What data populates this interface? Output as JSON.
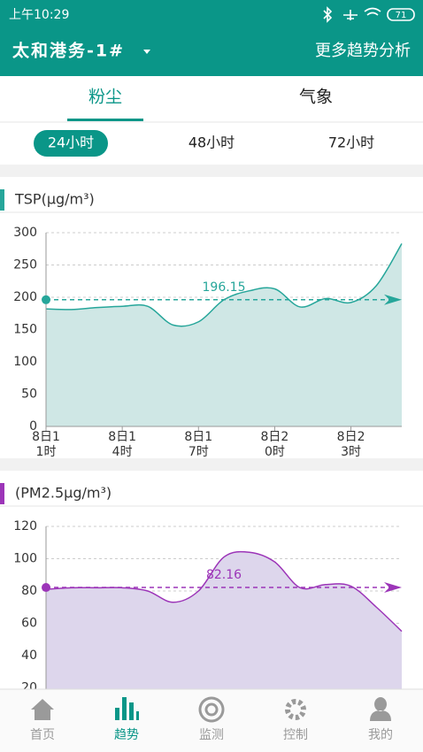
{
  "status_bar": {
    "time": "上午10:29",
    "battery": "71"
  },
  "header": {
    "title": "太和港务-1#",
    "action": "更多趋势分析"
  },
  "tabs": [
    "粉尘",
    "气象"
  ],
  "active_tab": 0,
  "time_ranges": [
    "24小时",
    "48小时",
    "72小时"
  ],
  "active_range": 0,
  "charts": [
    {
      "type": "area",
      "title": "TSP(μg/m³)",
      "color": "#26a69a",
      "fill": "#cfe7e5",
      "average": 196.15,
      "x": [
        0,
        1,
        2,
        3,
        4,
        5,
        6,
        7,
        8,
        9,
        10,
        11,
        12,
        13,
        14
      ],
      "values": [
        182,
        181,
        184,
        186,
        186,
        157,
        162,
        196,
        210,
        213,
        185,
        198,
        192,
        218,
        283
      ],
      "xlim": [
        0,
        14
      ],
      "ylim": [
        0,
        300
      ],
      "yticks": [
        0,
        50,
        100,
        150,
        200,
        250,
        300
      ],
      "xticks": [
        {
          "value": 0,
          "label": [
            "8日1",
            "1时"
          ]
        },
        {
          "value": 3,
          "label": [
            "8日1",
            "4时"
          ]
        },
        {
          "value": 6,
          "label": [
            "8日1",
            "7时"
          ]
        },
        {
          "value": 9,
          "label": [
            "8日2",
            "0时"
          ]
        },
        {
          "value": 12,
          "label": [
            "8日2",
            "3时"
          ]
        }
      ]
    },
    {
      "type": "area",
      "title": "(PM2.5μg/m³)",
      "color": "#9c35b8",
      "fill": "#ddd6ec",
      "average": 82.16,
      "x": [
        0,
        1,
        2,
        3,
        4,
        5,
        6,
        7,
        8,
        9,
        10,
        11,
        12,
        13,
        14
      ],
      "values": [
        81,
        82,
        82,
        82,
        80,
        73,
        80,
        101,
        104,
        98,
        82,
        84,
        83,
        70,
        55
      ],
      "xlim": [
        0,
        14
      ],
      "ylim": [
        0,
        120
      ],
      "yticks": [
        20,
        40,
        60,
        80,
        100,
        120
      ]
    }
  ],
  "nav": [
    "首页",
    "趋势",
    "监测",
    "控制",
    "我的"
  ],
  "active_nav": 1
}
